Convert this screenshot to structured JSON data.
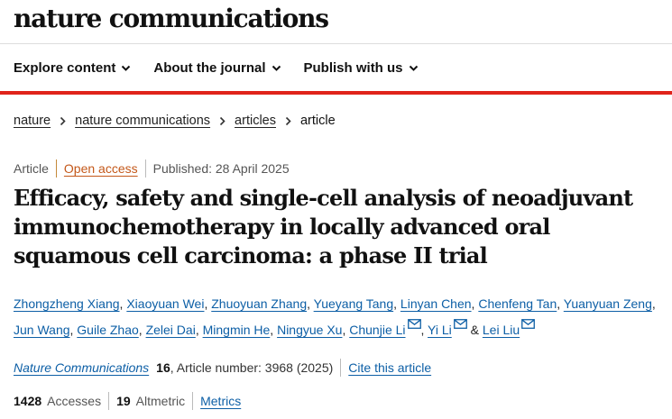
{
  "header": {
    "brand": "nature communications",
    "nav": [
      {
        "label": "Explore content"
      },
      {
        "label": "About the journal"
      },
      {
        "label": "Publish with us"
      }
    ]
  },
  "breadcrumb": {
    "items": [
      "nature",
      "nature communications",
      "articles"
    ],
    "current": "article"
  },
  "article": {
    "type": "Article",
    "access": "Open access",
    "published": "Published: 28 April 2025",
    "title": "Efficacy, safety and single-cell analysis of neoadjuvant immunochemotherapy in locally advanced oral squamous cell carcinoma: a phase II trial",
    "authors": [
      "Zhongzheng Xiang",
      "Xiaoyuan Wei",
      "Zhuoyuan Zhang",
      "Yueyang Tang",
      "Linyan Chen",
      "Chenfeng Tan",
      "Yuanyuan Zeng",
      "Jun Wang",
      "Guile Zhao",
      "Zelei Dai",
      "Mingmin He",
      "Ningyue Xu",
      "Chunjie Li",
      "Yi Li",
      "Lei Liu"
    ],
    "author_conjunction": "&",
    "journal": "Nature Communications",
    "volume": "16",
    "article_number": ", Article number: 3968 (2025)",
    "cite_label": "Cite this article",
    "accesses_count": "1428",
    "accesses_label": "Accesses",
    "altmetric_count": "19",
    "altmetric_label": "Altmetric",
    "metrics_label": "Metrics"
  },
  "icons": {
    "nav_chevron": "chevron-down-icon",
    "breadcrumb_separator": "chevron-right-icon",
    "corresponding_author": "mail-icon"
  },
  "colors": {
    "accent_red": "#e0231a",
    "link_blue": "#0d5fa6",
    "open_access_orange": "#c4581a"
  }
}
